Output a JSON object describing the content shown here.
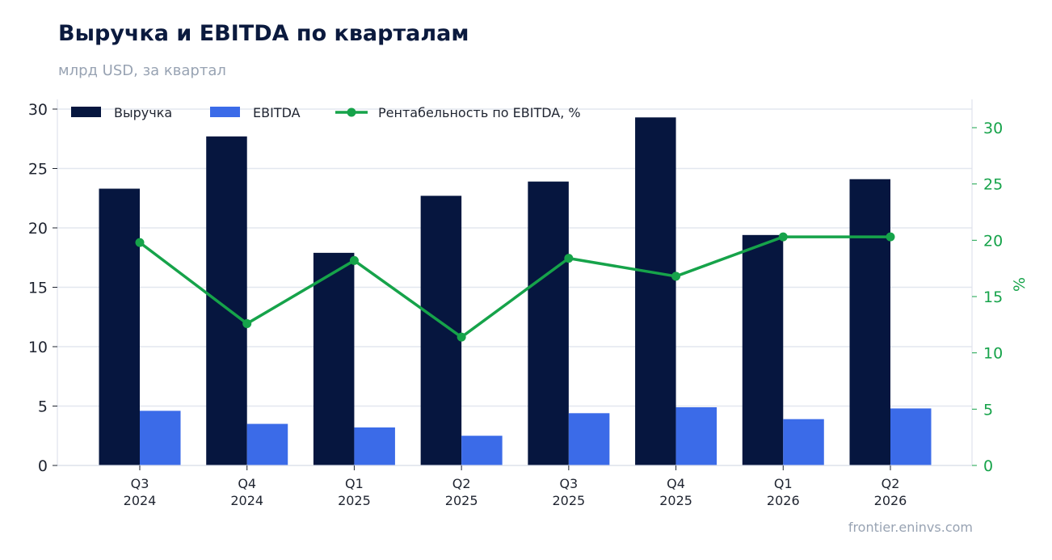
{
  "title": "Выручка и EBITDA по кварталам",
  "subtitle": "млрд USD, за квартал",
  "source": "frontier.eninvs.com",
  "colors": {
    "revenue": "#06163f",
    "ebitda": "#3b6be8",
    "margin": "#16a34a",
    "grid": "#e3e7ef"
  },
  "chart_data": {
    "type": "bar",
    "categories": [
      [
        "Q3",
        "2024"
      ],
      [
        "Q4",
        "2024"
      ],
      [
        "Q1",
        "2025"
      ],
      [
        "Q2",
        "2025"
      ],
      [
        "Q3",
        "2025"
      ],
      [
        "Q4",
        "2025"
      ],
      [
        "Q1",
        "2026"
      ],
      [
        "Q2",
        "2026"
      ]
    ],
    "series": [
      {
        "name": "Выручка",
        "type": "bar",
        "axis": "left",
        "values": [
          23.3,
          27.7,
          17.9,
          22.7,
          23.9,
          29.3,
          19.4,
          24.1
        ]
      },
      {
        "name": "EBITDA",
        "type": "bar",
        "axis": "left",
        "values": [
          4.6,
          3.5,
          3.2,
          2.5,
          4.4,
          4.9,
          3.9,
          4.8
        ]
      },
      {
        "name": "Рентабельность по EBITDA, %",
        "type": "line",
        "axis": "right",
        "values": [
          19.8,
          12.6,
          18.2,
          11.4,
          18.4,
          16.8,
          20.3,
          20.3
        ]
      }
    ],
    "y_left": {
      "lim": [
        0,
        30
      ],
      "ticks": [
        0,
        5,
        10,
        15,
        20,
        25,
        30
      ]
    },
    "y_right": {
      "label": "%",
      "lim": [
        0,
        30
      ],
      "ticks": [
        0,
        5,
        10,
        15,
        20,
        25,
        30
      ]
    },
    "grid": true,
    "legend": "top-left"
  }
}
